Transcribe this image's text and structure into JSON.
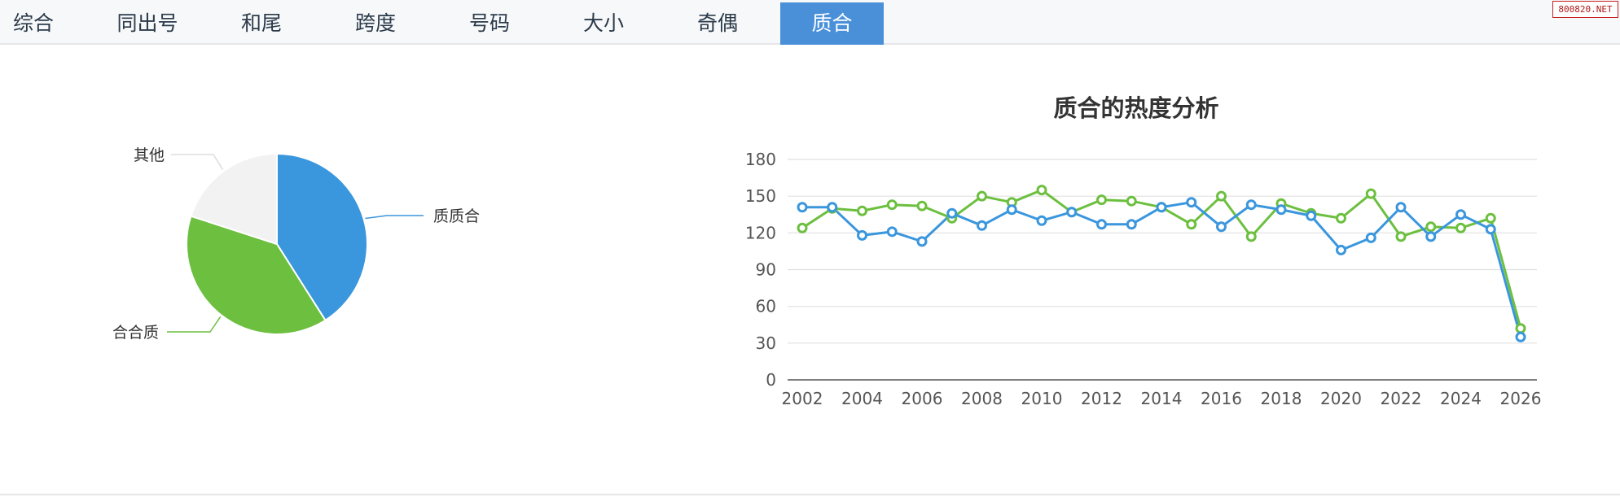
{
  "tabs": [
    {
      "label": "综合",
      "active": false
    },
    {
      "label": "同出号",
      "active": false
    },
    {
      "label": "和尾",
      "active": false
    },
    {
      "label": "跨度",
      "active": false
    },
    {
      "label": "号码",
      "active": false
    },
    {
      "label": "大小",
      "active": false
    },
    {
      "label": "奇偶",
      "active": false
    },
    {
      "label": "质合",
      "active": true
    }
  ],
  "watermark": "800820.NET",
  "colors": {
    "accent_tab": "#4a90d9",
    "blue": "#3a96dd",
    "green": "#6cbf3f",
    "grey": "#f2f2f2"
  },
  "chart_data": [
    {
      "type": "pie",
      "slices": [
        {
          "label": "质质合",
          "value": 41,
          "color": "#3a96dd"
        },
        {
          "label": "合合质",
          "value": 39,
          "color": "#6cbf3f"
        },
        {
          "label": "其他",
          "value": 20,
          "color": "#f2f2f2"
        }
      ]
    },
    {
      "type": "line",
      "title": "质合的热度分析",
      "x": [
        2002,
        2003,
        2004,
        2005,
        2006,
        2007,
        2008,
        2009,
        2010,
        2011,
        2012,
        2013,
        2014,
        2015,
        2016,
        2017,
        2018,
        2019,
        2020,
        2021,
        2022,
        2023,
        2024,
        2025,
        2026
      ],
      "x_ticks": [
        2002,
        2004,
        2006,
        2008,
        2010,
        2012,
        2014,
        2016,
        2018,
        2020,
        2022,
        2024,
        2026
      ],
      "y_ticks": [
        0,
        30,
        60,
        90,
        120,
        150,
        180
      ],
      "ylim": [
        0,
        180
      ],
      "grid": true,
      "series": [
        {
          "color": "#3a96dd",
          "values": [
            141,
            141,
            118,
            121,
            113,
            136,
            126,
            139,
            130,
            137,
            127,
            127,
            141,
            145,
            125,
            143,
            139,
            134,
            106,
            116,
            141,
            117,
            135,
            123,
            35
          ]
        },
        {
          "color": "#6cbf3f",
          "values": [
            124,
            140,
            138,
            143,
            142,
            132,
            150,
            145,
            155,
            137,
            147,
            146,
            141,
            127,
            150,
            117,
            144,
            136,
            132,
            152,
            117,
            125,
            124,
            132,
            42
          ]
        }
      ]
    }
  ]
}
